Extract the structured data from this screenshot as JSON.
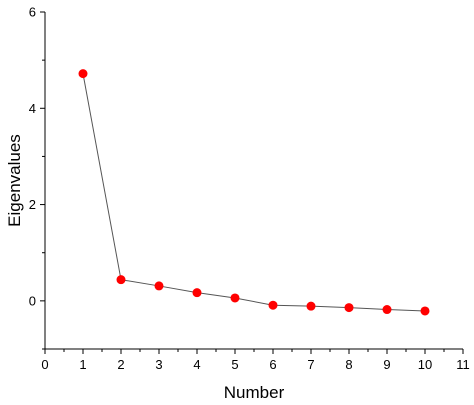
{
  "chart_data": {
    "type": "scatter",
    "title": "",
    "xlabel": "Number",
    "ylabel": "Eigenvalues",
    "xlim": [
      0,
      11
    ],
    "ylim": [
      -1,
      6
    ],
    "x_ticks": [
      0,
      1,
      2,
      3,
      4,
      5,
      6,
      7,
      8,
      9,
      10,
      11
    ],
    "y_ticks": [
      0,
      2,
      4,
      6
    ],
    "grid": false,
    "legend": "none",
    "series": [
      {
        "x": [
          1,
          2,
          3,
          4,
          5,
          6,
          7,
          8,
          9,
          10
        ],
        "y": [
          4.72,
          0.44,
          0.31,
          0.17,
          0.06,
          -0.09,
          -0.11,
          -0.14,
          -0.18,
          -0.21
        ],
        "marker_color": "#ff0000",
        "line_color": "#555555"
      }
    ]
  }
}
